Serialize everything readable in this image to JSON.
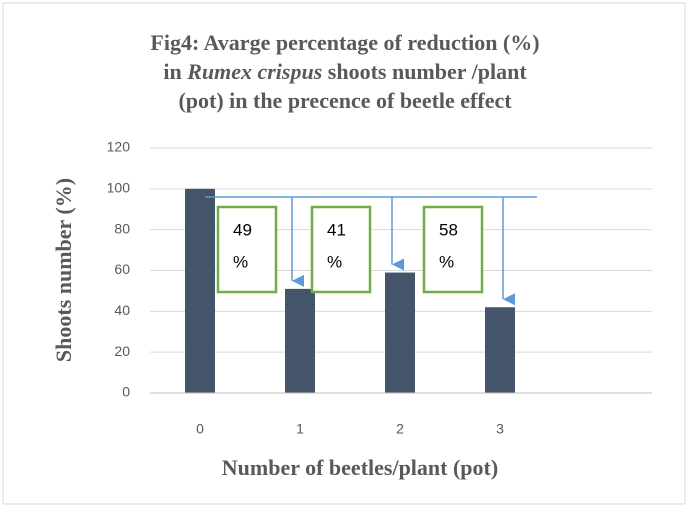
{
  "chart_data": {
    "type": "bar",
    "title": {
      "line1": "Fig4: Avarge percentage of reduction (%)",
      "line2_start": "in",
      "line2_italic": "Rumex crispus",
      "line2_end": "shoots number /plant",
      "line3": "(pot) in the precence of beetle effect"
    },
    "x_label": "Number of beetles/plant (pot)",
    "y_label": "Shoots number (%)",
    "categories": [
      "0",
      "1",
      "2",
      "3"
    ],
    "values": [
      100,
      51,
      59,
      42
    ],
    "color": "#44546a",
    "ylim": [
      0,
      120
    ],
    "yticks": [
      0,
      20,
      40,
      60,
      80,
      100,
      120
    ],
    "grid": true,
    "reference_level": 96,
    "annotations": [
      {
        "lines": [
          "49",
          "%"
        ]
      },
      {
        "lines": [
          "41",
          "%"
        ]
      },
      {
        "lines": [
          "58",
          "%"
        ]
      }
    ],
    "arrow_color": "#5b9bd5",
    "box_color": "#70ad47"
  }
}
